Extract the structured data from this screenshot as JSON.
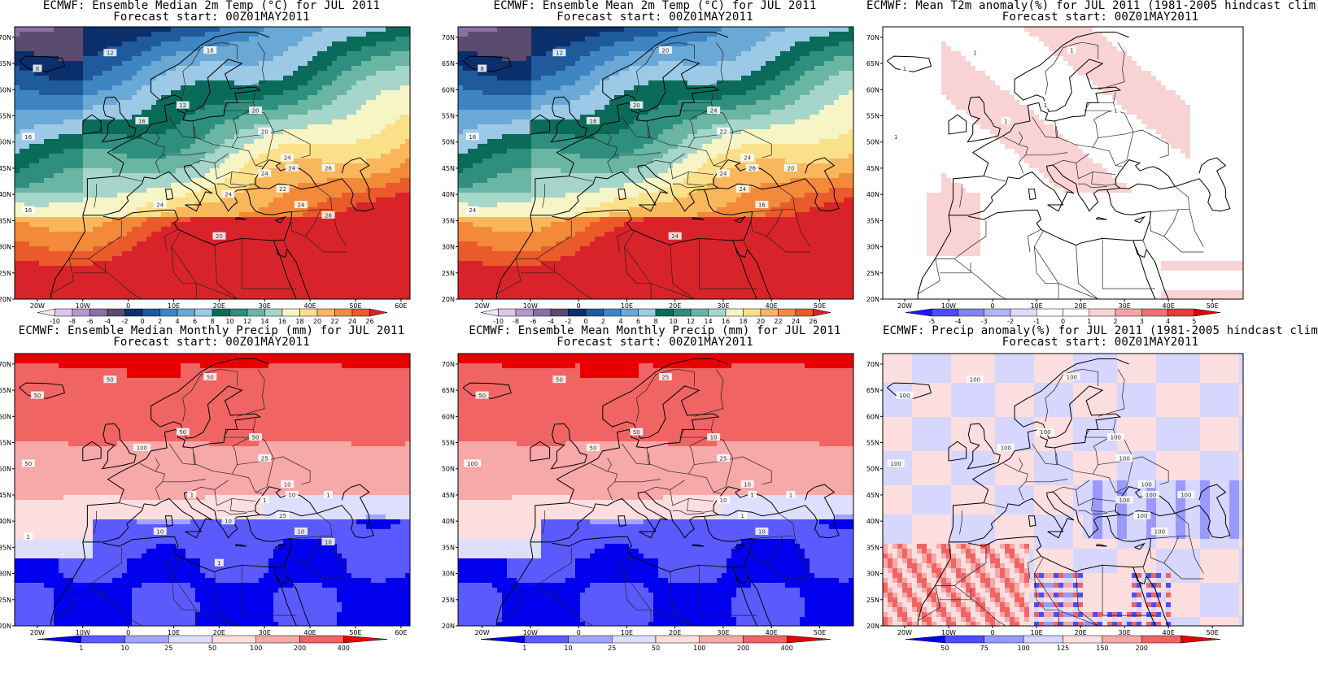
{
  "panels": [
    {
      "id": "t2m-median",
      "title_line1": "ECMWF: Ensemble Median 2m Temp (°C) for JUL 2011",
      "title_line2": "Forecast start: 00Z01MAY2011",
      "lon_ticks": [
        "20W",
        "10W",
        "0",
        "10E",
        "20E",
        "30E",
        "40E",
        "50E",
        "60E"
      ],
      "lat_ticks": [
        "20N",
        "25N",
        "30N",
        "35N",
        "40N",
        "45N",
        "50N",
        "55N",
        "60N",
        "65N",
        "70N"
      ],
      "map_style": "temp",
      "contour_labels": [
        "8",
        "12",
        "16",
        "16",
        "12",
        "16",
        "20",
        "20",
        "24",
        "22",
        "24",
        "24",
        "26",
        "24",
        "20",
        "16",
        "24",
        "24",
        "26"
      ],
      "colorbar_labels": [
        "-10",
        "-8",
        "-6",
        "-4",
        "-2",
        "0",
        "2",
        "4",
        "6",
        "8",
        "10",
        "12",
        "14",
        "16",
        "18",
        "20",
        "22",
        "24",
        "26"
      ],
      "colorbar_colors": [
        "#f2e8f7",
        "#dcc6ec",
        "#b895cf",
        "#8a6fa9",
        "#5b4b6e",
        "#0a2f6b",
        "#1e5a9c",
        "#3f85c4",
        "#6aa8d6",
        "#9cc9e6",
        "#0b6b5a",
        "#2f8f7e",
        "#6ab5a3",
        "#a5d6c9",
        "#f7f4c6",
        "#fbe08a",
        "#f9b75c",
        "#f28a3a",
        "#ea5a2a",
        "#d9232a"
      ]
    },
    {
      "id": "t2m-mean",
      "title_line1": "ECMWF: Ensemble Mean 2m Temp (°C) for JUL 2011",
      "title_line2": "Forecast start: 00Z01MAY2011",
      "lon_ticks": [
        "20W",
        "10W",
        "0",
        "10E",
        "20E",
        "30E",
        "40E",
        "50E"
      ],
      "lat_ticks": [
        "20N",
        "25N",
        "30N",
        "35N",
        "40N",
        "45N",
        "50N",
        "55N",
        "60N",
        "65N",
        "70N"
      ],
      "map_style": "temp",
      "contour_labels": [
        "8",
        "12",
        "16",
        "16",
        "20",
        "20",
        "24",
        "22",
        "24",
        "24",
        "26",
        "24",
        "20",
        "16",
        "24",
        "24"
      ],
      "colorbar_labels": [
        "-10",
        "-8",
        "-6",
        "-4",
        "-2",
        "0",
        "2",
        "4",
        "6",
        "8",
        "10",
        "12",
        "14",
        "16",
        "18",
        "20",
        "22",
        "24",
        "26"
      ],
      "colorbar_colors": [
        "#f2e8f7",
        "#dcc6ec",
        "#b895cf",
        "#8a6fa9",
        "#5b4b6e",
        "#0a2f6b",
        "#1e5a9c",
        "#3f85c4",
        "#6aa8d6",
        "#9cc9e6",
        "#0b6b5a",
        "#2f8f7e",
        "#6ab5a3",
        "#a5d6c9",
        "#f7f4c6",
        "#fbe08a",
        "#f9b75c",
        "#f28a3a",
        "#ea5a2a",
        "#d9232a"
      ]
    },
    {
      "id": "t2m-anomaly",
      "title_line1": "ECMWF: Mean T2m anomaly(%) for JUL 2011 (1981-2005 hindcast clim)",
      "title_line2": "Forecast start: 00Z01MAY2011",
      "lon_ticks": [
        "20W",
        "10W",
        "0",
        "10E",
        "20E",
        "30E",
        "40E",
        "50E"
      ],
      "lat_ticks": [
        "20N",
        "25N",
        "30N",
        "35N",
        "40N",
        "45N",
        "50N",
        "55N",
        "60N",
        "65N",
        "70N"
      ],
      "map_style": "tanom",
      "contour_labels": [
        "1",
        "1",
        "1",
        "1",
        "1",
        "1",
        "1"
      ],
      "colorbar_labels": [
        "-5",
        "-4",
        "-3",
        "-2",
        "-1",
        "0",
        "1",
        "2",
        "3",
        "4",
        "5"
      ],
      "colorbar_colors": [
        "#1a1aff",
        "#4d4dff",
        "#8080ff",
        "#b3b3ff",
        "#dcdcff",
        "#ffffff",
        "#ffffff",
        "#f9d3d3",
        "#f5a3a3",
        "#f07070",
        "#ea3b3b",
        "#e00000"
      ]
    },
    {
      "id": "precip-median",
      "title_line1": "ECMWF: Ensemble Median Monthly Precip (mm) for JUL 2011",
      "title_line2": "Forecast start: 00Z01MAY2011",
      "lon_ticks": [
        "20W",
        "10W",
        "0",
        "10E",
        "20E",
        "30E",
        "40E",
        "50E",
        "60E"
      ],
      "lat_ticks": [
        "20N",
        "25N",
        "30N",
        "35N",
        "40N",
        "45N",
        "50N",
        "55N",
        "60N",
        "65N",
        "70N"
      ],
      "map_style": "precip",
      "contour_labels": [
        "50",
        "50",
        "50",
        "100",
        "50",
        "50",
        "50",
        "25",
        "10",
        "25",
        "10",
        "1",
        "1",
        "10",
        "1",
        "1",
        "10",
        "10",
        "10",
        "1"
      ],
      "colorbar_labels": [
        "1",
        "10",
        "25",
        "50",
        "100",
        "200",
        "400"
      ],
      "colorbar_colors": [
        "#0000ee",
        "#5a5aff",
        "#a3a3ff",
        "#dedeff",
        "#fcdede",
        "#f7a8a8",
        "#f06464",
        "#e80000"
      ]
    },
    {
      "id": "precip-mean",
      "title_line1": "ECMWF: Ensemble Mean Monthly Precip (mm) for JUL 2011",
      "title_line2": "Forecast start: 00Z01MAY2011",
      "lon_ticks": [
        "20W",
        "10W",
        "0",
        "10E",
        "20E",
        "30E",
        "40E",
        "50E"
      ],
      "lat_ticks": [
        "20N",
        "25N",
        "30N",
        "35N",
        "40N",
        "45N",
        "50N",
        "55N",
        "60N",
        "65N",
        "70N"
      ],
      "map_style": "precip",
      "contour_labels": [
        "50",
        "50",
        "100",
        "50",
        "50",
        "25",
        "10",
        "25",
        "10",
        "1",
        "1",
        "10",
        "1",
        "10"
      ],
      "colorbar_labels": [
        "1",
        "10",
        "25",
        "50",
        "100",
        "200",
        "400"
      ],
      "colorbar_colors": [
        "#0000ee",
        "#5a5aff",
        "#a3a3ff",
        "#dedeff",
        "#fcdede",
        "#f7a8a8",
        "#f06464",
        "#e80000"
      ]
    },
    {
      "id": "precip-anomaly",
      "title_line1": "ECMWF: Precip anomaly(%) for JUL 2011 (1981-2005 hindcast clim)",
      "title_line2": "Forecast start: 00Z01MAY2011",
      "lon_ticks": [
        "20W",
        "10W",
        "0",
        "10E",
        "20E",
        "30E",
        "40E",
        "50E"
      ],
      "lat_ticks": [
        "20N",
        "25N",
        "30N",
        "35N",
        "40N",
        "45N",
        "50N",
        "55N",
        "60N",
        "65N",
        "70N"
      ],
      "map_style": "panom",
      "contour_labels": [
        "100",
        "100",
        "100",
        "100",
        "100",
        "100",
        "100",
        "100",
        "100",
        "100",
        "100",
        "100",
        "100",
        "100"
      ],
      "colorbar_labels": [
        "50",
        "75",
        "100",
        "125",
        "150",
        "200"
      ],
      "colorbar_colors": [
        "#0000ee",
        "#4d4dff",
        "#9999ff",
        "#d6d6ff",
        "#fcdede",
        "#f7a8a8",
        "#f06464",
        "#e80000"
      ]
    }
  ]
}
